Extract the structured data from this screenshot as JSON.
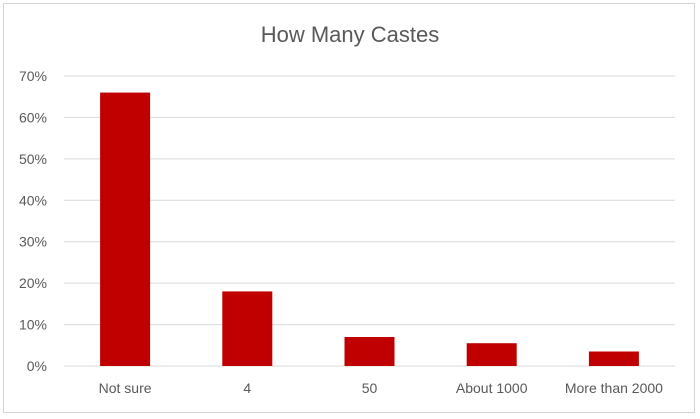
{
  "chart_data": {
    "type": "bar",
    "title": "How Many Castes",
    "xlabel": "",
    "ylabel": "",
    "categories": [
      "Not sure",
      "4",
      "50",
      "About 1000",
      "More than 2000"
    ],
    "values": [
      66,
      18,
      7,
      5.5,
      3.5
    ],
    "ylim": [
      0,
      70
    ],
    "yticks": [
      0,
      10,
      20,
      30,
      40,
      50,
      60,
      70
    ],
    "ytick_labels": [
      "0%",
      "10%",
      "20%",
      "30%",
      "40%",
      "50%",
      "60%",
      "70%"
    ],
    "grid": true,
    "legend": "none",
    "bar_color": "#c00000",
    "grid_color": "#d9d9d9"
  }
}
